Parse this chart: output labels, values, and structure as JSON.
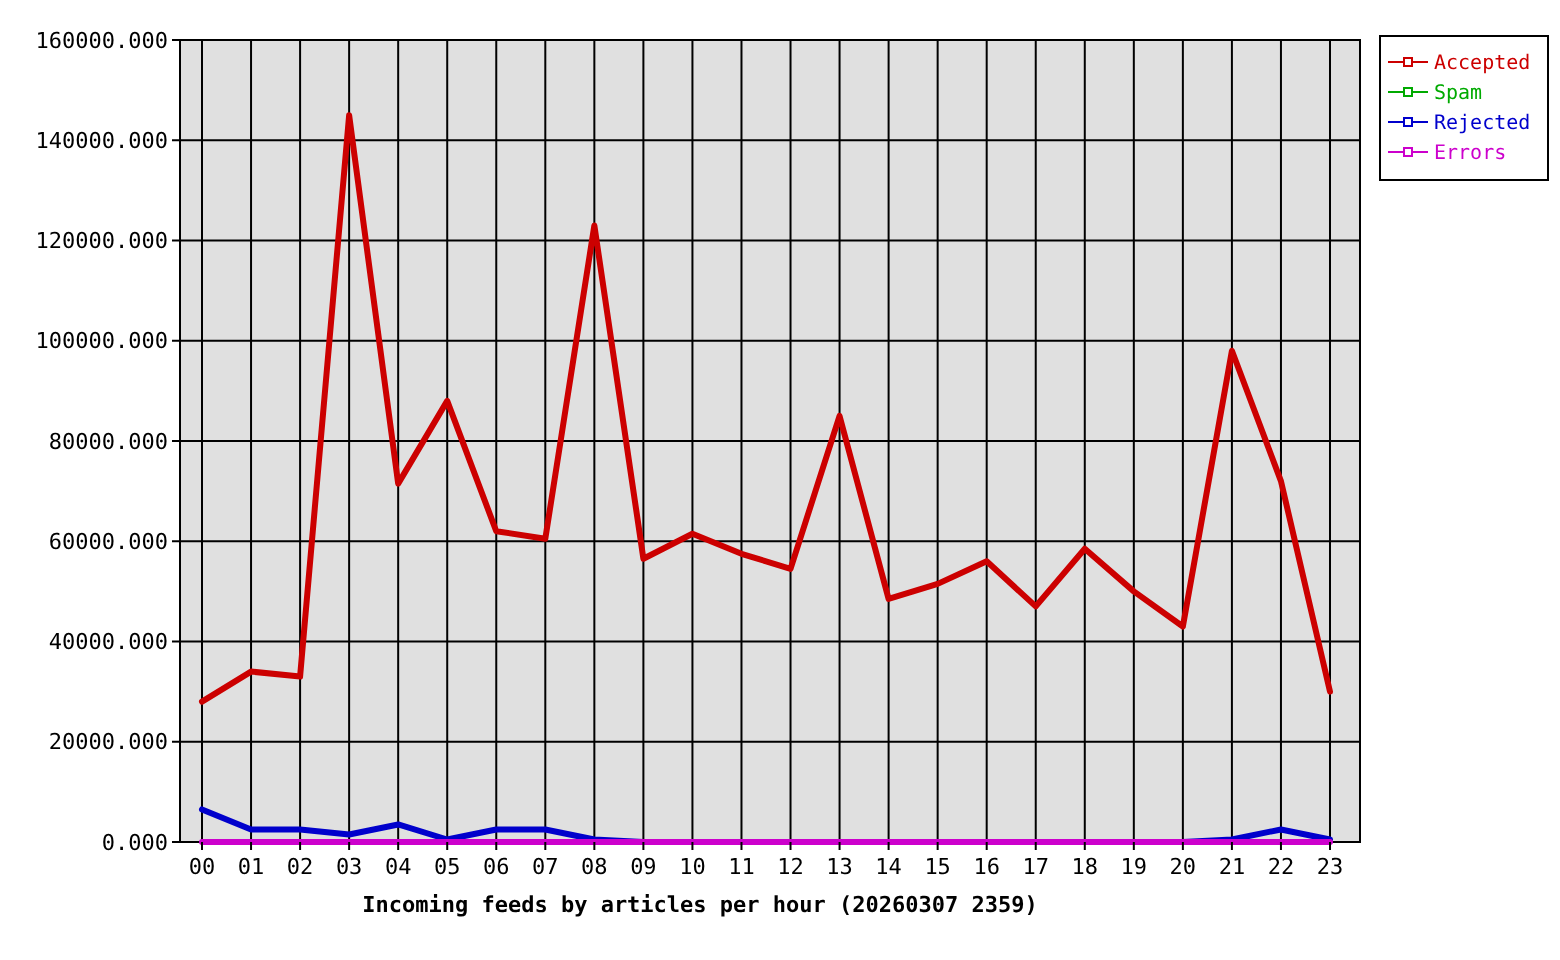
{
  "chart_data": {
    "type": "line",
    "xlabel": "Incoming feeds by articles per hour (20260307 2359)",
    "categories": [
      "00",
      "01",
      "02",
      "03",
      "04",
      "05",
      "06",
      "07",
      "08",
      "09",
      "10",
      "11",
      "12",
      "13",
      "14",
      "15",
      "16",
      "17",
      "18",
      "19",
      "20",
      "21",
      "22",
      "23"
    ],
    "series": [
      {
        "name": "Accepted",
        "color": "#cc0000",
        "values": [
          28000,
          34000,
          33000,
          145000,
          71500,
          88000,
          62000,
          60500,
          123000,
          56500,
          61500,
          57500,
          54500,
          85000,
          48500,
          51500,
          56000,
          47000,
          58500,
          50000,
          43000,
          98000,
          72000,
          30000
        ]
      },
      {
        "name": "Spam",
        "color": "#00aa00",
        "values": [
          null,
          null,
          null,
          null,
          null,
          null,
          null,
          null,
          null,
          null,
          null,
          null,
          null,
          null,
          null,
          null,
          null,
          null,
          null,
          null,
          null,
          null,
          null,
          null
        ]
      },
      {
        "name": "Rejected",
        "color": "#0000cc",
        "values": [
          6500,
          2500,
          2500,
          1500,
          3500,
          500,
          2500,
          2500,
          500,
          0,
          0,
          0,
          0,
          0,
          0,
          0,
          0,
          0,
          0,
          0,
          0,
          500,
          2500,
          500
        ]
      },
      {
        "name": "Errors",
        "color": "#cc00cc",
        "values": [
          0,
          0,
          0,
          0,
          0,
          0,
          0,
          0,
          0,
          0,
          0,
          0,
          0,
          0,
          0,
          0,
          0,
          0,
          0,
          0,
          0,
          0,
          0,
          0
        ]
      }
    ],
    "ylim": [
      0,
      160000
    ],
    "yticks": [
      {
        "value": 0,
        "label": "0.000"
      },
      {
        "value": 20000,
        "label": "20000.000"
      },
      {
        "value": 40000,
        "label": "40000.000"
      },
      {
        "value": 60000,
        "label": "60000.000"
      },
      {
        "value": 80000,
        "label": "80000.000"
      },
      {
        "value": 100000,
        "label": "100000.000"
      },
      {
        "value": 120000,
        "label": "120000.000"
      },
      {
        "value": 140000,
        "label": "140000.000"
      },
      {
        "value": 160000,
        "label": "160000.000"
      }
    ],
    "grid": true,
    "legend": "top right",
    "marker": "none",
    "line_style": "solid"
  }
}
